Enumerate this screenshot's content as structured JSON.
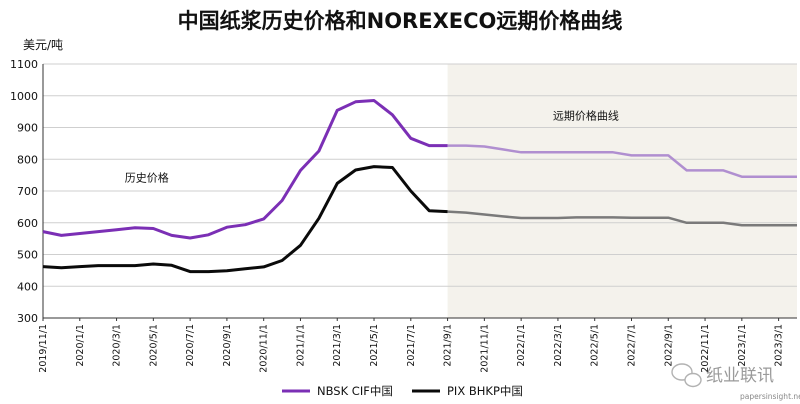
{
  "chart_data": {
    "type": "line",
    "title": "中国纸浆历史价格和NOREXECO远期价格曲线",
    "ylabel": "美元/吨",
    "ylim": [
      300,
      1100
    ],
    "yticks": [
      300,
      400,
      500,
      600,
      700,
      800,
      900,
      1000,
      1100
    ],
    "x_tick_labels": [
      "2019/11/1",
      "2020/1/1",
      "2020/3/1",
      "2020/5/1",
      "2020/7/1",
      "2020/9/1",
      "2020/11/1",
      "2021/1/1",
      "2021/3/1",
      "2021/5/1",
      "2021/7/1",
      "2021/9/1",
      "2021/11/1",
      "2022/1/1",
      "2022/3/1",
      "2022/5/1",
      "2022/7/1",
      "2022/9/1",
      "2022/11/1",
      "2023/1/1",
      "2023/3/1"
    ],
    "x_range": [
      "2019/11/1",
      "2023/4/1"
    ],
    "forecast_start": "2021/9/1",
    "annotations": {
      "history": "历史价格",
      "forward": "远期价格曲线"
    },
    "grid": "horizontal",
    "legend_position": "bottom-center",
    "series": [
      {
        "name": "NBSK CIF中国",
        "color": "#7b2fb5",
        "forward_color": "#b08fd0",
        "history": [
          [
            "2019/11/1",
            572
          ],
          [
            "2019/12/1",
            560
          ],
          [
            "2020/1/1",
            566
          ],
          [
            "2020/2/1",
            572
          ],
          [
            "2020/3/1",
            578
          ],
          [
            "2020/4/1",
            584
          ],
          [
            "2020/5/1",
            582
          ],
          [
            "2020/6/1",
            560
          ],
          [
            "2020/7/1",
            552
          ],
          [
            "2020/8/1",
            562
          ],
          [
            "2020/9/1",
            586
          ],
          [
            "2020/10/1",
            594
          ],
          [
            "2020/11/1",
            612
          ],
          [
            "2020/12/1",
            670
          ],
          [
            "2021/1/1",
            765
          ],
          [
            "2021/2/1",
            826
          ],
          [
            "2021/3/1",
            954
          ],
          [
            "2021/4/1",
            981
          ],
          [
            "2021/5/1",
            985
          ],
          [
            "2021/6/1",
            940
          ],
          [
            "2021/7/1",
            866
          ],
          [
            "2021/8/1",
            843
          ],
          [
            "2021/9/1",
            843
          ]
        ],
        "forward": [
          [
            "2021/9/1",
            843
          ],
          [
            "2021/10/1",
            843
          ],
          [
            "2021/11/1",
            840
          ],
          [
            "2021/12/1",
            831
          ],
          [
            "2022/1/1",
            822
          ],
          [
            "2022/2/1",
            822
          ],
          [
            "2022/3/1",
            822
          ],
          [
            "2022/4/1",
            822
          ],
          [
            "2022/5/1",
            822
          ],
          [
            "2022/6/1",
            822
          ],
          [
            "2022/7/1",
            812
          ],
          [
            "2022/8/1",
            812
          ],
          [
            "2022/9/1",
            812
          ],
          [
            "2022/10/1",
            765
          ],
          [
            "2022/11/1",
            765
          ],
          [
            "2022/12/1",
            765
          ],
          [
            "2023/1/1",
            745
          ],
          [
            "2023/2/1",
            745
          ],
          [
            "2023/3/1",
            745
          ],
          [
            "2023/4/1",
            745
          ]
        ]
      },
      {
        "name": "PIX BHKP中国",
        "color": "#0a0a0a",
        "forward_color": "#7a7a7a",
        "history": [
          [
            "2019/11/1",
            462
          ],
          [
            "2019/12/1",
            458
          ],
          [
            "2020/1/1",
            462
          ],
          [
            "2020/2/1",
            465
          ],
          [
            "2020/3/1",
            465
          ],
          [
            "2020/4/1",
            465
          ],
          [
            "2020/5/1",
            470
          ],
          [
            "2020/6/1",
            466
          ],
          [
            "2020/7/1",
            446
          ],
          [
            "2020/8/1",
            446
          ],
          [
            "2020/9/1",
            449
          ],
          [
            "2020/10/1",
            455
          ],
          [
            "2020/11/1",
            461
          ],
          [
            "2020/12/1",
            481
          ],
          [
            "2021/1/1",
            529
          ],
          [
            "2021/2/1",
            614
          ],
          [
            "2021/3/1",
            724
          ],
          [
            "2021/4/1",
            766
          ],
          [
            "2021/5/1",
            777
          ],
          [
            "2021/6/1",
            774
          ],
          [
            "2021/7/1",
            700
          ],
          [
            "2021/8/1",
            638
          ],
          [
            "2021/9/1",
            635
          ]
        ],
        "forward": [
          [
            "2021/9/1",
            635
          ],
          [
            "2021/10/1",
            632
          ],
          [
            "2021/11/1",
            626
          ],
          [
            "2021/12/1",
            620
          ],
          [
            "2022/1/1",
            615
          ],
          [
            "2022/2/1",
            615
          ],
          [
            "2022/3/1",
            615
          ],
          [
            "2022/4/1",
            617
          ],
          [
            "2022/5/1",
            617
          ],
          [
            "2022/6/1",
            617
          ],
          [
            "2022/7/1",
            616
          ],
          [
            "2022/8/1",
            616
          ],
          [
            "2022/9/1",
            616
          ],
          [
            "2022/10/1",
            600
          ],
          [
            "2022/11/1",
            600
          ],
          [
            "2022/12/1",
            600
          ],
          [
            "2023/1/1",
            592
          ],
          [
            "2023/2/1",
            592
          ],
          [
            "2023/3/1",
            592
          ],
          [
            "2023/4/1",
            592
          ]
        ]
      }
    ]
  },
  "watermark": {
    "text": "纸业联讯",
    "url": "papersinsight.net",
    "icon": "wechat-icon"
  }
}
